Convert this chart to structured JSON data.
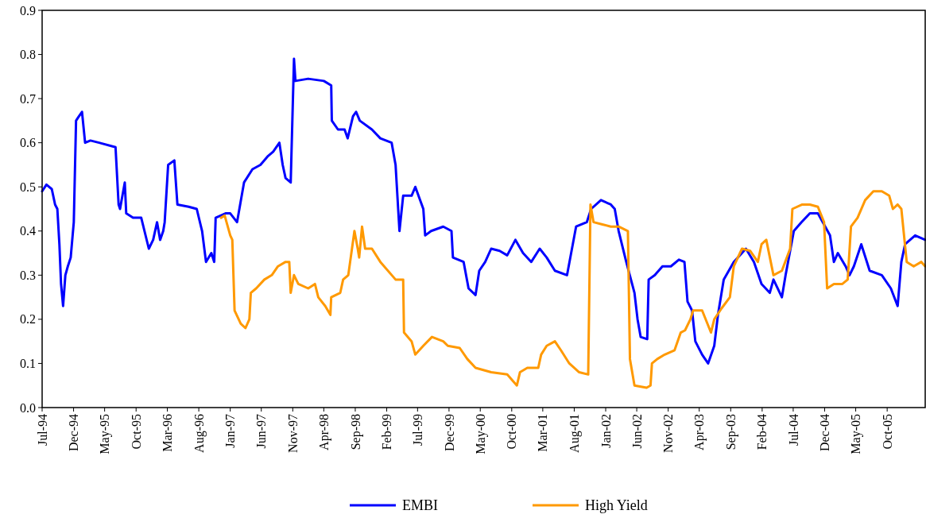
{
  "chart_data": {
    "type": "line",
    "xlim": [
      "1994-07-01",
      "2006-04-04"
    ],
    "ylim": [
      0,
      0.9
    ],
    "yticks": [
      {
        "value": 0,
        "label": "0.0"
      },
      0.1,
      0.2,
      0.3,
      0.4,
      0.5,
      0.6,
      0.7,
      0.8,
      0.9
    ],
    "xticks": [
      {
        "value": "1994-07",
        "label": "Jul-94"
      },
      {
        "value": "1994-12",
        "label": "Dec-94"
      },
      {
        "value": "1995-05",
        "label": "May-95"
      },
      {
        "value": "1995-10",
        "label": "Oct-95"
      },
      {
        "value": "1996-03",
        "label": "Mar-96"
      },
      {
        "value": "1996-08",
        "label": "Aug-96"
      },
      {
        "value": "1997-01",
        "label": "Jan-97"
      },
      {
        "value": "1997-06",
        "label": "Jun-97"
      },
      {
        "value": "1997-11",
        "label": "Nov-97"
      },
      {
        "value": "1998-04",
        "label": "Apr-98"
      },
      {
        "value": "1998-09",
        "label": "Sep-98"
      },
      {
        "value": "1999-02",
        "label": "Feb-99"
      },
      {
        "value": "1999-07",
        "label": "Jul-99"
      },
      {
        "value": "1999-12",
        "label": "Dec-99"
      },
      {
        "value": "2000-05",
        "label": "May-00"
      },
      {
        "value": "2000-10",
        "label": "Oct-00"
      },
      {
        "value": "2001-03",
        "label": "Mar-01"
      },
      {
        "value": "2001-08",
        "label": "Aug-01"
      },
      {
        "value": "2002-01",
        "label": "Jan-02"
      },
      {
        "value": "2002-06",
        "label": "Jun-02"
      },
      {
        "value": "2002-11",
        "label": "Nov-02"
      },
      {
        "value": "2003-04",
        "label": "Apr-03"
      },
      {
        "value": "2003-09",
        "label": "Sep-03"
      },
      {
        "value": "2004-02",
        "label": "Feb-04"
      },
      {
        "value": "2004-07",
        "label": "Jul-04"
      },
      {
        "value": "2004-12",
        "label": "Dec-04"
      },
      {
        "value": "2005-05",
        "label": "May-05"
      },
      {
        "value": "2005-10",
        "label": "Oct-05"
      }
    ],
    "legend": "bottom",
    "series": [
      {
        "name": "EMBI",
        "color": "#0000ff",
        "x": [
          "1994-07-01",
          "1994-07-22",
          "1994-08-17",
          "1994-09-02",
          "1994-09-13",
          "1994-09-23",
          "1994-10-01",
          "1994-10-11",
          "1994-10-22",
          "1994-11-03",
          "1994-11-17",
          "1994-12-02",
          "1994-12-13",
          "1994-12-27",
          "1995-01-11",
          "1995-01-26",
          "1995-02-21",
          "1995-04-04",
          "1995-06-23",
          "1995-07-08",
          "1995-07-15",
          "1995-08-07",
          "1995-08-14",
          "1995-09-16",
          "1995-10-26",
          "1995-12-02",
          "1995-12-23",
          "1996-01-11",
          "1996-01-26",
          "1996-02-10",
          "1996-02-17",
          "1996-03-05",
          "1996-04-04",
          "1996-04-19",
          "1996-06-13",
          "1996-07-22",
          "1996-08-17",
          "1996-09-05",
          "1996-10-01",
          "1996-10-15",
          "1996-10-22",
          "1996-12-09",
          "1997-01-01",
          "1997-02-03",
          "1997-03-09",
          "1997-04-19",
          "1997-05-28",
          "1997-07-04",
          "1997-07-29",
          "1997-08-28",
          "1997-09-13",
          "1997-09-27",
          "1997-10-22",
          "1997-11-07",
          "1997-11-14",
          "1998-01-15",
          "1998-04-01",
          "1998-05-07",
          "1998-05-10",
          "1998-06-09",
          "1998-07-11",
          "1998-07-26",
          "1998-08-21",
          "1998-09-05",
          "1998-09-23",
          "1998-11-21",
          "1999-01-01",
          "1999-02-25",
          "1999-03-16",
          "1999-04-04",
          "1999-04-22",
          "1999-06-02",
          "1999-06-20",
          "1999-07-29",
          "1999-08-07",
          "1999-09-05",
          "1999-11-03",
          "1999-12-13",
          "1999-12-20",
          "2000-02-10",
          "2000-03-05",
          "2000-04-08",
          "2000-04-26",
          "2000-05-25",
          "2000-06-23",
          "2000-08-03",
          "2000-09-09",
          "2000-10-19",
          "2000-11-25",
          "2001-01-04",
          "2001-02-14",
          "2001-03-20",
          "2001-04-29",
          "2001-06-27",
          "2001-08-10",
          "2001-10-01",
          "2001-10-22",
          "2001-12-09",
          "2002-01-26",
          "2002-02-14",
          "2002-03-05",
          "2002-04-11",
          "2002-05-21",
          "2002-06-05",
          "2002-06-20",
          "2002-07-22",
          "2002-07-29",
          "2002-08-28",
          "2002-10-04",
          "2002-11-14",
          "2002-12-23",
          "2003-01-19",
          "2003-02-03",
          "2003-02-25",
          "2003-03-13",
          "2003-04-15",
          "2003-05-14",
          "2003-06-13",
          "2003-07-01",
          "2003-07-29",
          "2003-09-16",
          "2003-11-14",
          "2003-12-23",
          "2004-01-29",
          "2004-03-09",
          "2004-03-27",
          "2004-05-07",
          "2004-05-25",
          "2004-07-04",
          "2004-08-10",
          "2004-09-20",
          "2004-10-29",
          "2004-12-27",
          "2005-01-15",
          "2005-02-03",
          "2005-03-13",
          "2005-04-01",
          "2005-04-22",
          "2005-05-28",
          "2005-07-08",
          "2005-09-05",
          "2005-10-19",
          "2005-11-21",
          "2005-12-09",
          "2005-12-27",
          "2006-02-14",
          "2006-04-04"
        ],
        "values": [
          0.49,
          0.505,
          0.495,
          0.46,
          0.45,
          0.37,
          0.28,
          0.23,
          0.3,
          0.32,
          0.34,
          0.42,
          0.65,
          0.66,
          0.67,
          0.6,
          0.605,
          0.6,
          0.59,
          0.46,
          0.45,
          0.51,
          0.44,
          0.43,
          0.43,
          0.36,
          0.38,
          0.42,
          0.38,
          0.4,
          0.42,
          0.55,
          0.56,
          0.46,
          0.455,
          0.45,
          0.4,
          0.33,
          0.35,
          0.33,
          0.43,
          0.44,
          0.44,
          0.42,
          0.51,
          0.54,
          0.55,
          0.57,
          0.58,
          0.6,
          0.55,
          0.52,
          0.51,
          0.79,
          0.74,
          0.745,
          0.74,
          0.73,
          0.65,
          0.63,
          0.63,
          0.61,
          0.66,
          0.67,
          0.65,
          0.63,
          0.61,
          0.6,
          0.55,
          0.4,
          0.48,
          0.48,
          0.5,
          0.45,
          0.39,
          0.4,
          0.41,
          0.4,
          0.34,
          0.33,
          0.27,
          0.255,
          0.31,
          0.33,
          0.36,
          0.355,
          0.345,
          0.38,
          0.35,
          0.33,
          0.36,
          0.34,
          0.31,
          0.3,
          0.41,
          0.42,
          0.45,
          0.47,
          0.46,
          0.45,
          0.4,
          0.33,
          0.26,
          0.2,
          0.16,
          0.155,
          0.29,
          0.3,
          0.32,
          0.32,
          0.335,
          0.33,
          0.24,
          0.22,
          0.15,
          0.12,
          0.1,
          0.14,
          0.21,
          0.29,
          0.33,
          0.36,
          0.33,
          0.28,
          0.26,
          0.29,
          0.25,
          0.3,
          0.4,
          0.42,
          0.44,
          0.44,
          0.39,
          0.33,
          0.35,
          0.32,
          0.3,
          0.32,
          0.37,
          0.31,
          0.3,
          0.27,
          0.23,
          0.33,
          0.37,
          0.39,
          0.38
        ]
      },
      {
        "name": "High Yield",
        "color": "#ff9900",
        "x": [
          "1996-11-17",
          "1996-12-05",
          "1997-01-01",
          "1997-01-11",
          "1997-01-22",
          "1997-02-21",
          "1997-03-16",
          "1997-04-04",
          "1997-04-11",
          "1997-05-07",
          "1997-06-16",
          "1997-07-22",
          "1997-08-21",
          "1997-09-27",
          "1997-10-15",
          "1997-10-22",
          "1997-11-07",
          "1997-11-28",
          "1998-01-15",
          "1998-02-17",
          "1998-03-05",
          "1998-04-08",
          "1998-05-03",
          "1998-05-07",
          "1998-06-20",
          "1998-07-04",
          "1998-07-29",
          "1998-08-28",
          "1998-09-13",
          "1998-09-20",
          "1998-10-04",
          "1998-10-19",
          "1998-11-21",
          "1999-01-01",
          "1999-03-16",
          "1999-04-22",
          "1999-04-26",
          "1999-06-02",
          "1999-06-20",
          "1999-07-29",
          "1999-09-09",
          "1999-11-03",
          "1999-11-25",
          "2000-01-22",
          "2000-02-28",
          "2000-04-08",
          "2000-06-23",
          "2000-09-09",
          "2000-10-26",
          "2000-11-10",
          "2000-12-16",
          "2001-02-07",
          "2001-02-21",
          "2001-03-20",
          "2001-04-29",
          "2001-05-28",
          "2001-07-08",
          "2001-08-25",
          "2001-10-08",
          "2001-10-19",
          "2001-11-03",
          "2001-12-16",
          "2002-01-26",
          "2002-03-05",
          "2002-04-19",
          "2002-04-29",
          "2002-05-21",
          "2002-07-19",
          "2002-08-07",
          "2002-08-14",
          "2002-09-09",
          "2002-10-15",
          "2002-12-02",
          "2003-01-01",
          "2003-01-22",
          "2003-02-17",
          "2003-03-02",
          "2003-04-15",
          "2003-05-28",
          "2003-06-13",
          "2003-07-19",
          "2003-08-28",
          "2003-09-16",
          "2003-10-26",
          "2003-12-05",
          "2004-01-11",
          "2004-01-29",
          "2004-02-21",
          "2004-03-27",
          "2004-05-07",
          "2004-06-16",
          "2004-06-27",
          "2004-08-14",
          "2004-09-20",
          "2004-10-29",
          "2004-11-28",
          "2004-12-13",
          "2005-01-15",
          "2005-02-25",
          "2005-03-23",
          "2005-04-08",
          "2005-05-10",
          "2005-06-16",
          "2005-07-26",
          "2005-09-05",
          "2005-10-11",
          "2005-10-29",
          "2005-11-21",
          "2005-12-09",
          "2006-01-04",
          "2006-02-07",
          "2006-03-16",
          "2006-04-04"
        ],
        "values": [
          0.43,
          0.435,
          0.39,
          0.38,
          0.22,
          0.19,
          0.18,
          0.2,
          0.26,
          0.27,
          0.29,
          0.3,
          0.32,
          0.33,
          0.33,
          0.26,
          0.3,
          0.28,
          0.27,
          0.28,
          0.25,
          0.23,
          0.21,
          0.25,
          0.26,
          0.29,
          0.3,
          0.4,
          0.36,
          0.34,
          0.41,
          0.36,
          0.36,
          0.33,
          0.29,
          0.29,
          0.17,
          0.15,
          0.12,
          0.14,
          0.16,
          0.15,
          0.14,
          0.135,
          0.11,
          0.09,
          0.08,
          0.075,
          0.05,
          0.08,
          0.09,
          0.09,
          0.12,
          0.14,
          0.15,
          0.13,
          0.1,
          0.08,
          0.075,
          0.46,
          0.42,
          0.415,
          0.41,
          0.41,
          0.4,
          0.11,
          0.05,
          0.045,
          0.05,
          0.1,
          0.11,
          0.12,
          0.13,
          0.17,
          0.175,
          0.2,
          0.22,
          0.22,
          0.17,
          0.2,
          0.225,
          0.25,
          0.32,
          0.36,
          0.355,
          0.33,
          0.37,
          0.38,
          0.3,
          0.31,
          0.36,
          0.45,
          0.46,
          0.46,
          0.455,
          0.42,
          0.27,
          0.28,
          0.28,
          0.29,
          0.41,
          0.43,
          0.47,
          0.49,
          0.49,
          0.48,
          0.45,
          0.46,
          0.45,
          0.33,
          0.32,
          0.33,
          0.32
        ]
      }
    ]
  }
}
